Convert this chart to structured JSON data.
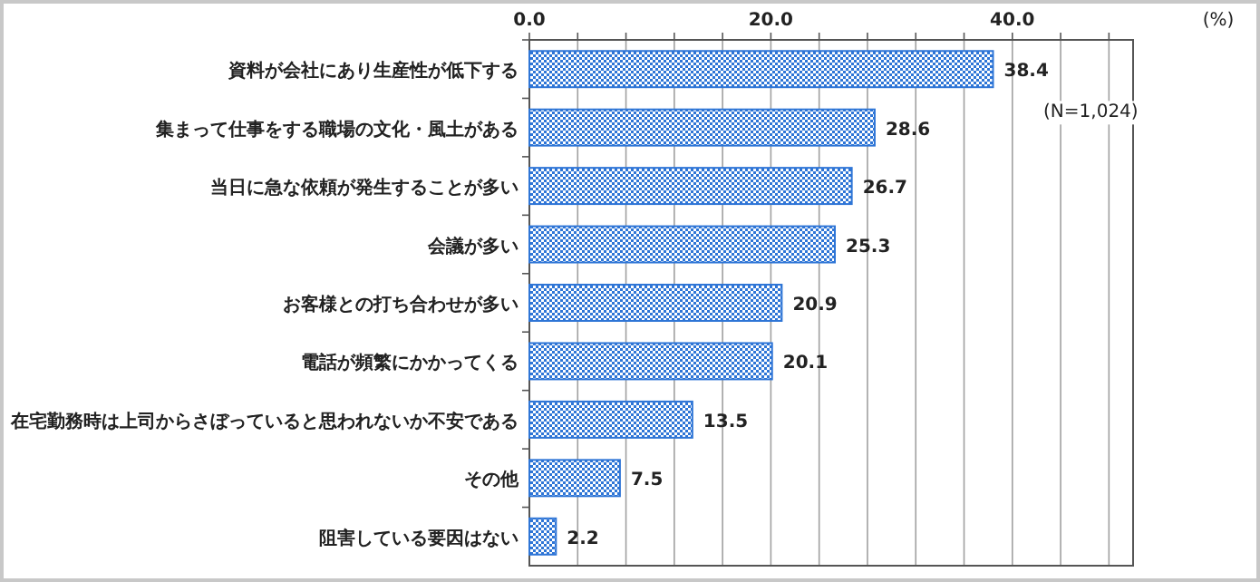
{
  "chart_data": {
    "type": "bar",
    "orientation": "horizontal",
    "categories": [
      "資料が会社にあり生産性が低下する",
      "集まって仕事をする職場の文化・風土がある",
      "当日に急な依頼が発生することが多い",
      "会議が多い",
      "お客様との打ち合わせが多い",
      "電話が頻繁にかかってくる",
      "在宅勤務時は上司からさぼっていると思われないか不安である",
      "その他",
      "阻害している要因はない"
    ],
    "values": [
      38.4,
      28.6,
      26.7,
      25.3,
      20.9,
      20.1,
      13.5,
      7.5,
      2.2
    ],
    "color": "#2e75d6",
    "xlim": [
      0,
      50
    ],
    "xticks": [
      {
        "value": 0,
        "label": "0.0"
      },
      {
        "value": 4,
        "label": null
      },
      {
        "value": 8,
        "label": null
      },
      {
        "value": 12,
        "label": null
      },
      {
        "value": 16,
        "label": null
      },
      {
        "value": 20,
        "label": "20.0"
      },
      {
        "value": 24,
        "label": null
      },
      {
        "value": 28,
        "label": null
      },
      {
        "value": 32,
        "label": null
      },
      {
        "value": 36,
        "label": null
      },
      {
        "value": 40,
        "label": "40.0"
      },
      {
        "value": 44,
        "label": null
      },
      {
        "value": 48,
        "label": null
      }
    ],
    "grid": "x",
    "data_labels": true,
    "annotations": [
      "(%)",
      "(N=1,024)"
    ]
  }
}
